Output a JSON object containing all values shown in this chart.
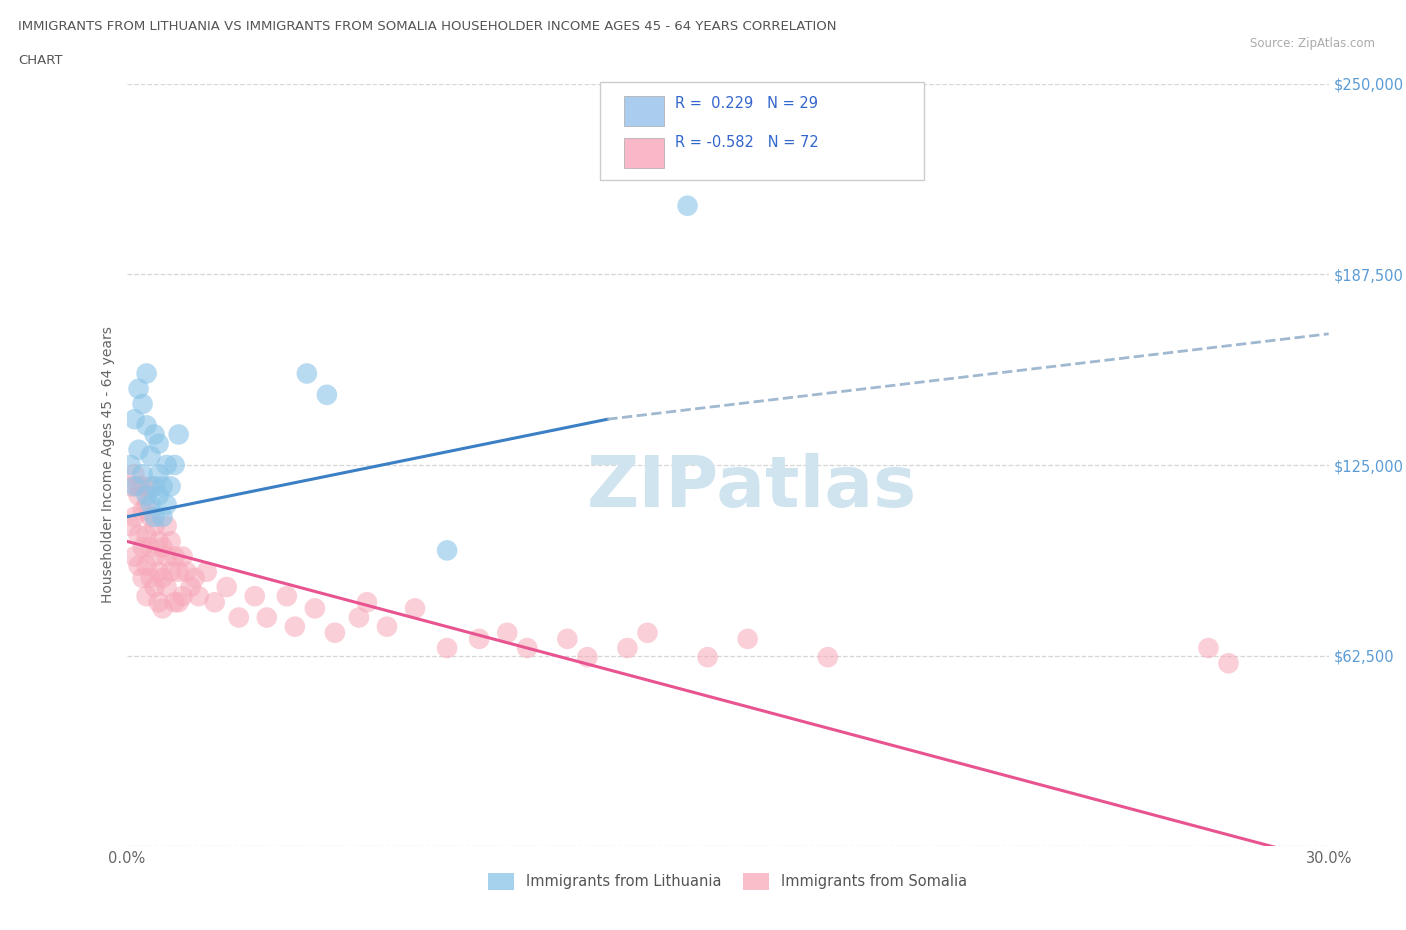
{
  "title_line1": "IMMIGRANTS FROM LITHUANIA VS IMMIGRANTS FROM SOMALIA HOUSEHOLDER INCOME AGES 45 - 64 YEARS CORRELATION",
  "title_line2": "CHART",
  "source": "Source: ZipAtlas.com",
  "ylabel": "Householder Income Ages 45 - 64 years",
  "xmin": 0.0,
  "xmax": 0.3,
  "ymin": 0,
  "ymax": 250000,
  "yticks": [
    0,
    62500,
    125000,
    187500,
    250000
  ],
  "ytick_labels": [
    "",
    "$62,500",
    "$125,000",
    "$187,500",
    "$250,000"
  ],
  "xticks": [
    0.0,
    0.05,
    0.1,
    0.15,
    0.2,
    0.25,
    0.3
  ],
  "xtick_labels": [
    "0.0%",
    "",
    "",
    "",
    "",
    "",
    "30.0%"
  ],
  "color_lithuania": "#89c4e8",
  "color_somalia": "#f7a8b8",
  "color_line_lithuania": "#3b7fc4",
  "color_line_somalia": "#e85490",
  "color_line_dashed": "#a0b8d0",
  "watermark_text": "ZIPatlas",
  "watermark_color": "#d0e4f0",
  "lithuania_x": [
    0.001,
    0.002,
    0.002,
    0.003,
    0.003,
    0.004,
    0.004,
    0.005,
    0.005,
    0.005,
    0.006,
    0.006,
    0.007,
    0.007,
    0.007,
    0.008,
    0.008,
    0.008,
    0.009,
    0.009,
    0.01,
    0.01,
    0.011,
    0.012,
    0.013,
    0.045,
    0.05,
    0.08,
    0.14
  ],
  "lithuania_y": [
    125000,
    140000,
    118000,
    150000,
    130000,
    145000,
    122000,
    138000,
    115000,
    155000,
    128000,
    112000,
    135000,
    118000,
    108000,
    122000,
    115000,
    132000,
    118000,
    108000,
    125000,
    112000,
    118000,
    125000,
    135000,
    155000,
    148000,
    97000,
    210000
  ],
  "somalia_x": [
    0.001,
    0.001,
    0.002,
    0.002,
    0.002,
    0.003,
    0.003,
    0.003,
    0.003,
    0.004,
    0.004,
    0.004,
    0.004,
    0.005,
    0.005,
    0.005,
    0.005,
    0.006,
    0.006,
    0.006,
    0.006,
    0.007,
    0.007,
    0.007,
    0.008,
    0.008,
    0.008,
    0.009,
    0.009,
    0.009,
    0.01,
    0.01,
    0.01,
    0.011,
    0.011,
    0.012,
    0.012,
    0.013,
    0.013,
    0.014,
    0.014,
    0.015,
    0.016,
    0.017,
    0.018,
    0.02,
    0.022,
    0.025,
    0.028,
    0.032,
    0.035,
    0.04,
    0.042,
    0.047,
    0.052,
    0.058,
    0.06,
    0.065,
    0.072,
    0.08,
    0.088,
    0.095,
    0.1,
    0.11,
    0.115,
    0.125,
    0.13,
    0.145,
    0.155,
    0.175,
    0.27,
    0.275
  ],
  "somalia_y": [
    118000,
    105000,
    122000,
    108000,
    95000,
    115000,
    102000,
    118000,
    92000,
    110000,
    98000,
    118000,
    88000,
    112000,
    102000,
    92000,
    82000,
    108000,
    98000,
    88000,
    118000,
    105000,
    95000,
    85000,
    100000,
    90000,
    80000,
    98000,
    88000,
    78000,
    105000,
    95000,
    85000,
    100000,
    90000,
    95000,
    80000,
    90000,
    80000,
    95000,
    82000,
    90000,
    85000,
    88000,
    82000,
    90000,
    80000,
    85000,
    75000,
    82000,
    75000,
    82000,
    72000,
    78000,
    70000,
    75000,
    80000,
    72000,
    78000,
    65000,
    68000,
    70000,
    65000,
    68000,
    62000,
    65000,
    70000,
    62000,
    68000,
    62000,
    65000,
    60000
  ],
  "line_lith_x0": 0.0,
  "line_lith_y0": 108000,
  "line_lith_x1": 0.12,
  "line_lith_y1": 140000,
  "line_som_x0": 0.0,
  "line_som_y0": 100000,
  "line_som_x1": 0.3,
  "line_som_y1": -5000,
  "line_dashed_x0": 0.12,
  "line_dashed_y0": 140000,
  "line_dashed_x1": 0.3,
  "line_dashed_y1": 168000,
  "legend_r1": "R =  0.229   N = 29",
  "legend_r2": "R = -0.582   N = 72"
}
